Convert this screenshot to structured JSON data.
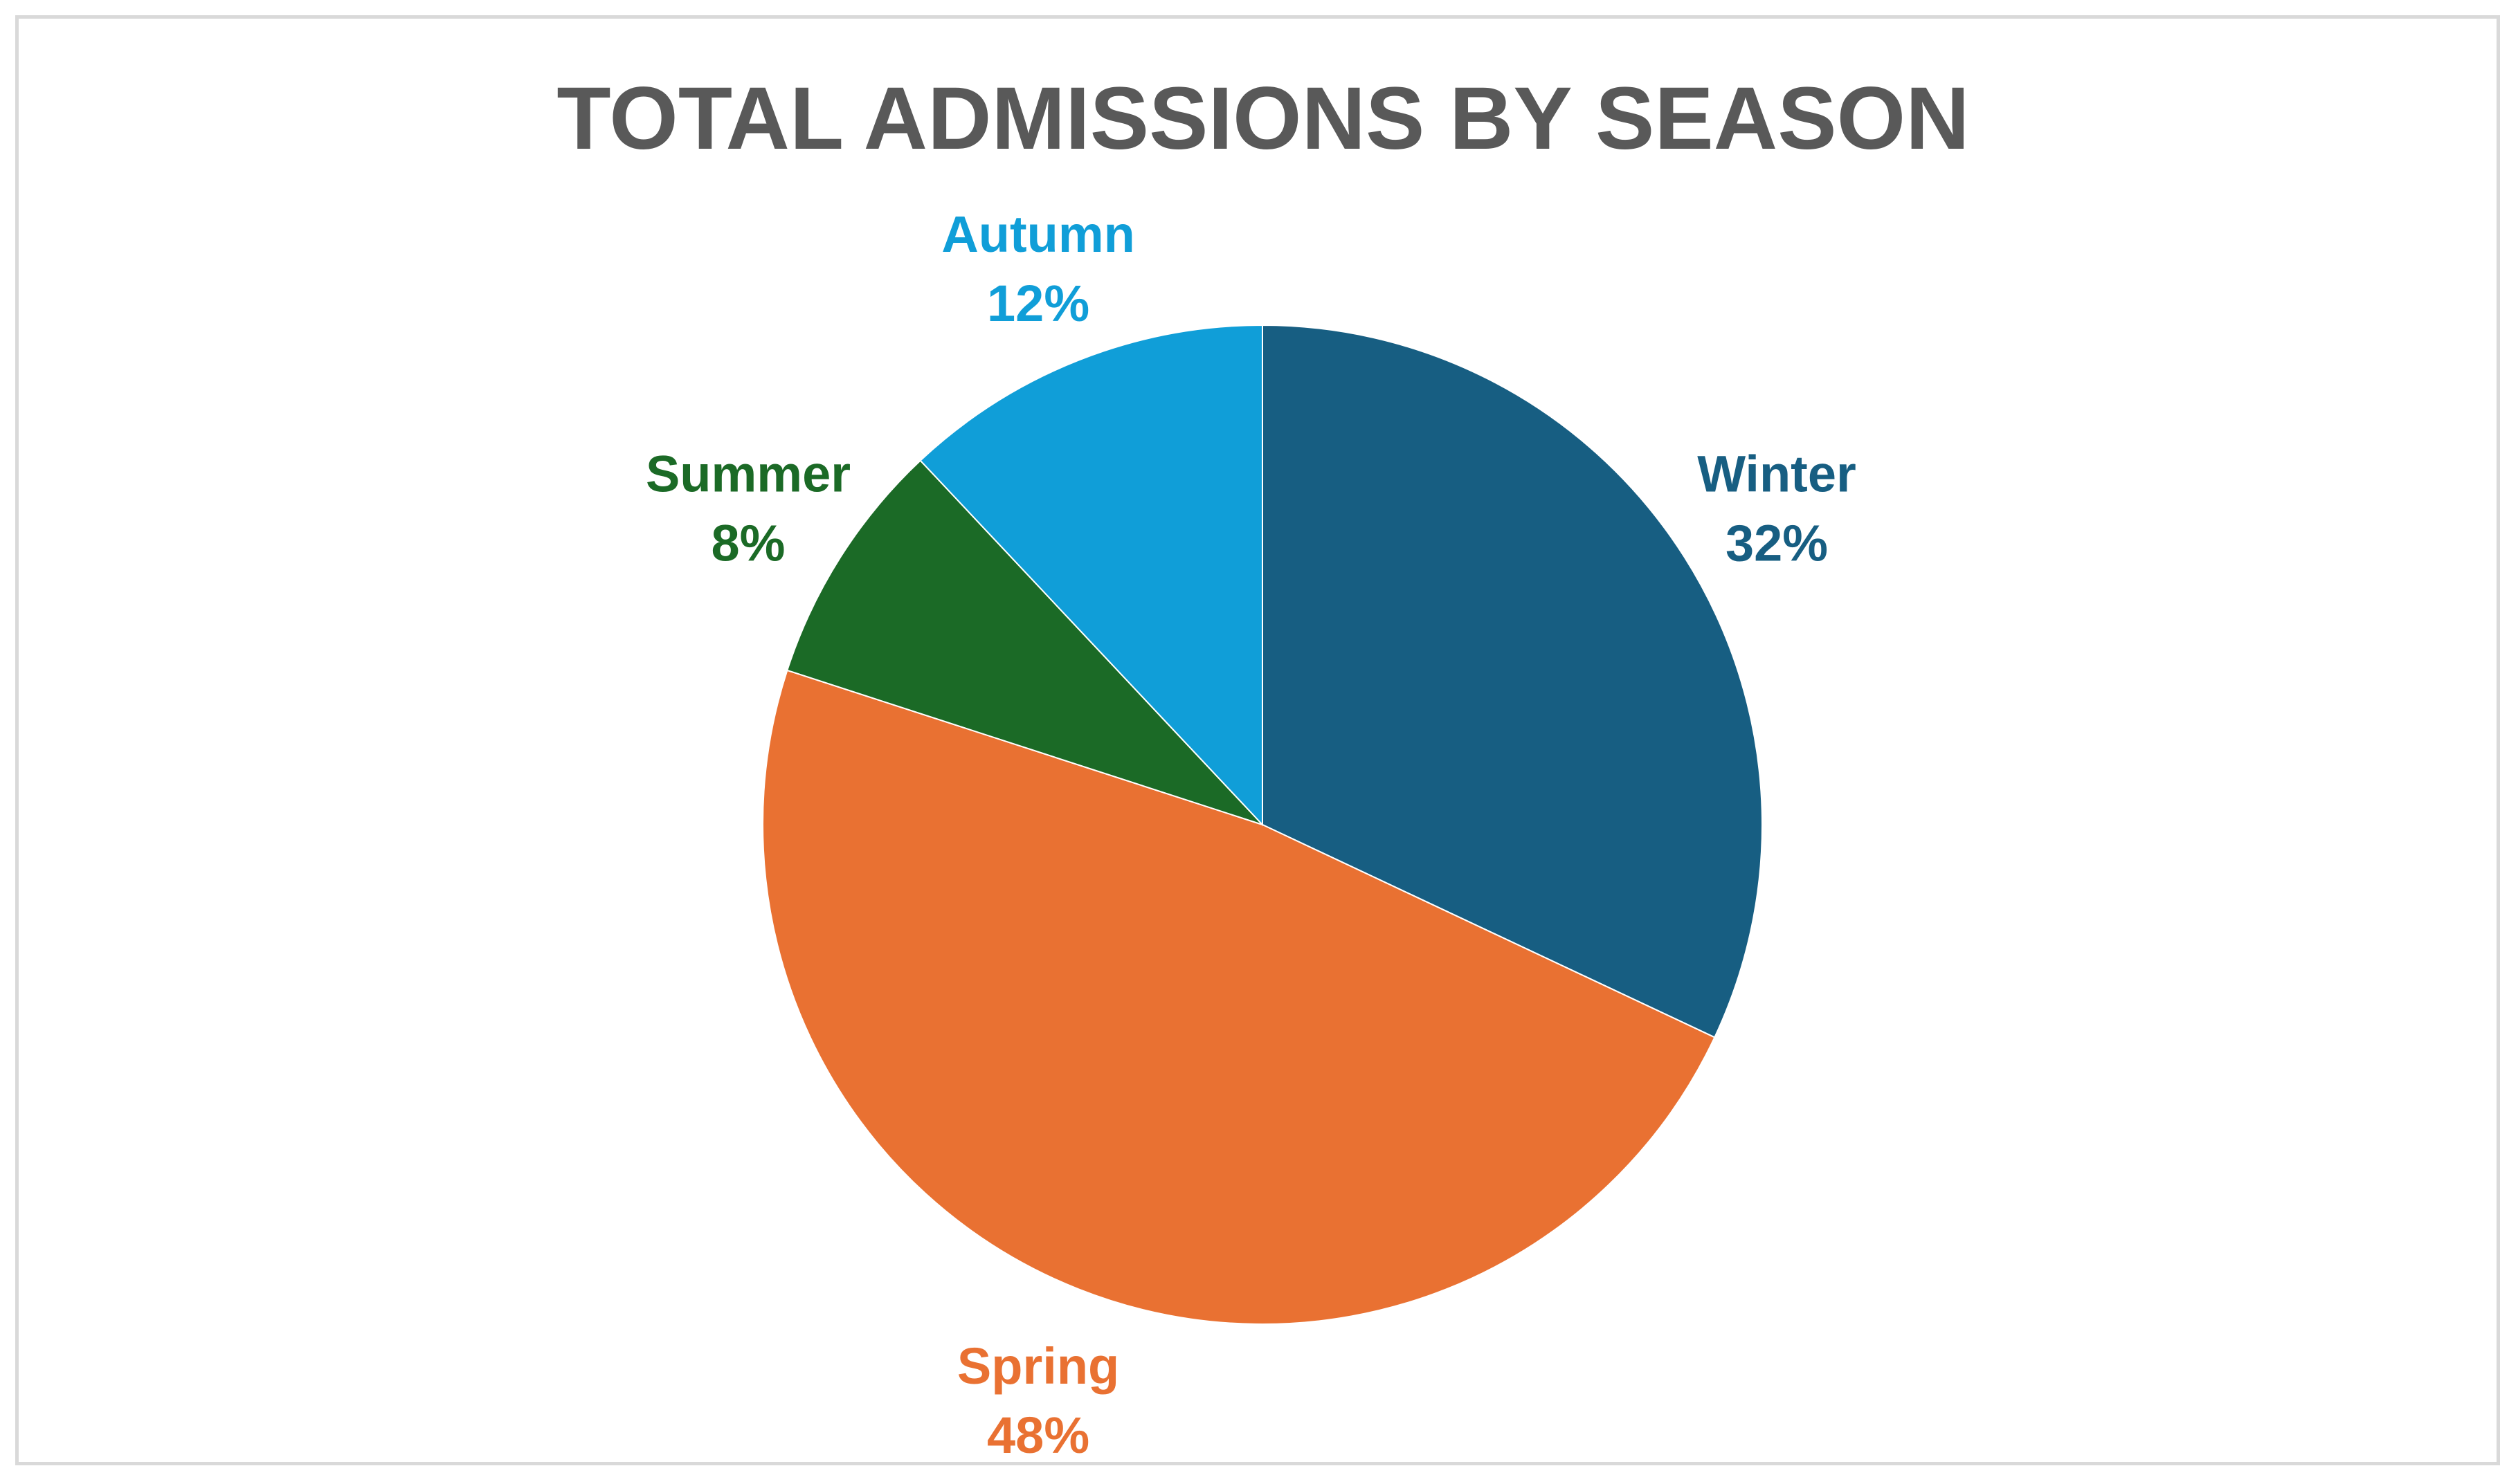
{
  "chart_data": {
    "type": "pie",
    "title": "TOTAL ADMISSIONS BY SEASON",
    "start_angle_deg": 0,
    "direction": "clockwise",
    "legend": "none",
    "slices": [
      {
        "label": "Winter",
        "value": 32,
        "value_label": "32%",
        "color": "#175e82"
      },
      {
        "label": "Spring",
        "value": 48,
        "value_label": "48%",
        "color": "#e97132"
      },
      {
        "label": "Summer",
        "value": 8,
        "value_label": "8%",
        "color": "#1b6a26"
      },
      {
        "label": "Autumn",
        "value": 12,
        "value_label": "12%",
        "color": "#109ed8"
      }
    ]
  }
}
